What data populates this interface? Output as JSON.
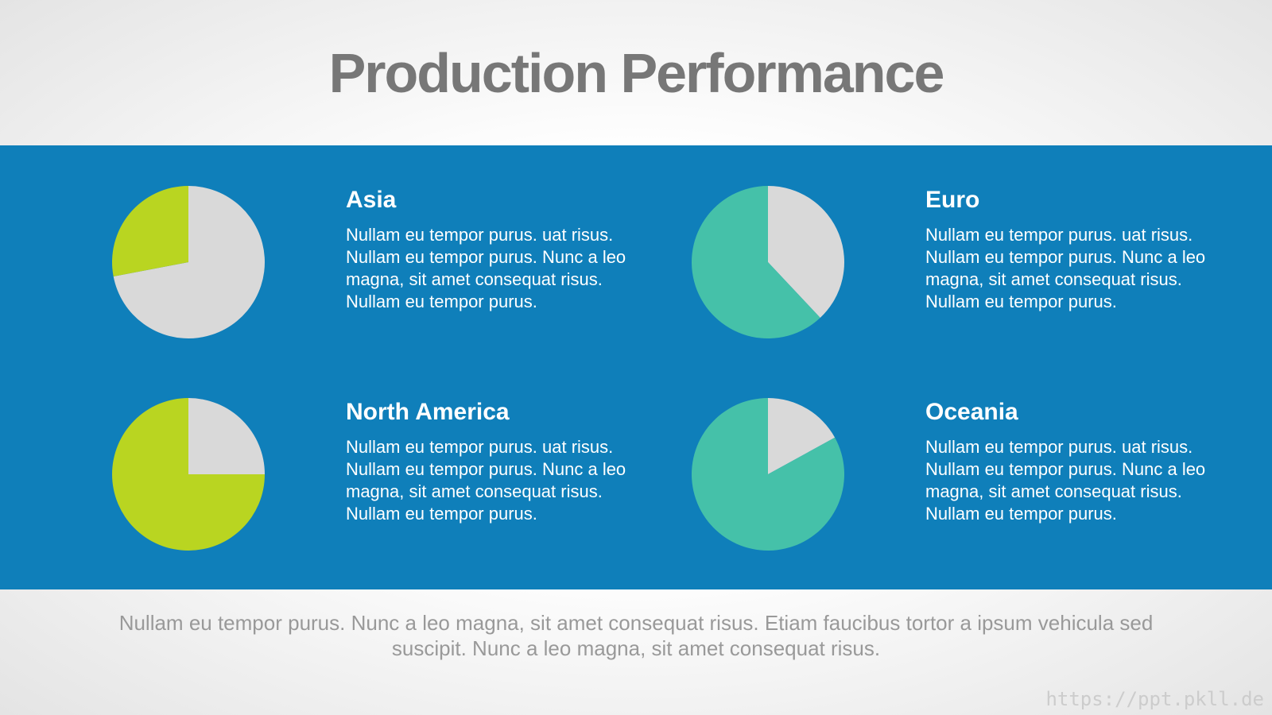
{
  "title": "Production Performance",
  "footer": "Nullam eu tempor purus. Nunc a leo magna, sit amet consequat risus. Etiam faucibus tortor a ipsum vehicula sed suscipit. Nunc a leo magna, sit amet consequat risus.",
  "watermark": "https://ppt.pkll.de",
  "chart_data": [
    {
      "type": "pie",
      "title": "Asia",
      "text": "Nullam eu tempor purus. uat risus. Nullam eu tempor purus. Nunc a leo magna, sit amet consequat risus. Nullam eu tempor purus.",
      "values": [
        72,
        28
      ],
      "colors": [
        "#d9d9d9",
        "#b9d521"
      ]
    },
    {
      "type": "pie",
      "title": "Euro",
      "text": "Nullam eu tempor purus. uat risus. Nullam eu tempor purus. Nunc a leo magna, sit amet consequat risus. Nullam eu tempor purus.",
      "values": [
        38,
        62
      ],
      "colors": [
        "#d9d9d9",
        "#45c1a9"
      ]
    },
    {
      "type": "pie",
      "title": "North America",
      "text": "Nullam eu tempor purus. uat risus. Nullam eu tempor purus. Nunc a leo magna, sit amet consequat risus. Nullam eu tempor purus.",
      "values": [
        25,
        75
      ],
      "colors": [
        "#d9d9d9",
        "#b9d521"
      ]
    },
    {
      "type": "pie",
      "title": "Oceania",
      "text": "Nullam eu tempor purus. uat risus. Nullam eu tempor purus. Nunc a leo magna, sit amet consequat risus. Nullam eu tempor purus.",
      "values": [
        17,
        83
      ],
      "colors": [
        "#d9d9d9",
        "#45c1a9"
      ]
    }
  ]
}
